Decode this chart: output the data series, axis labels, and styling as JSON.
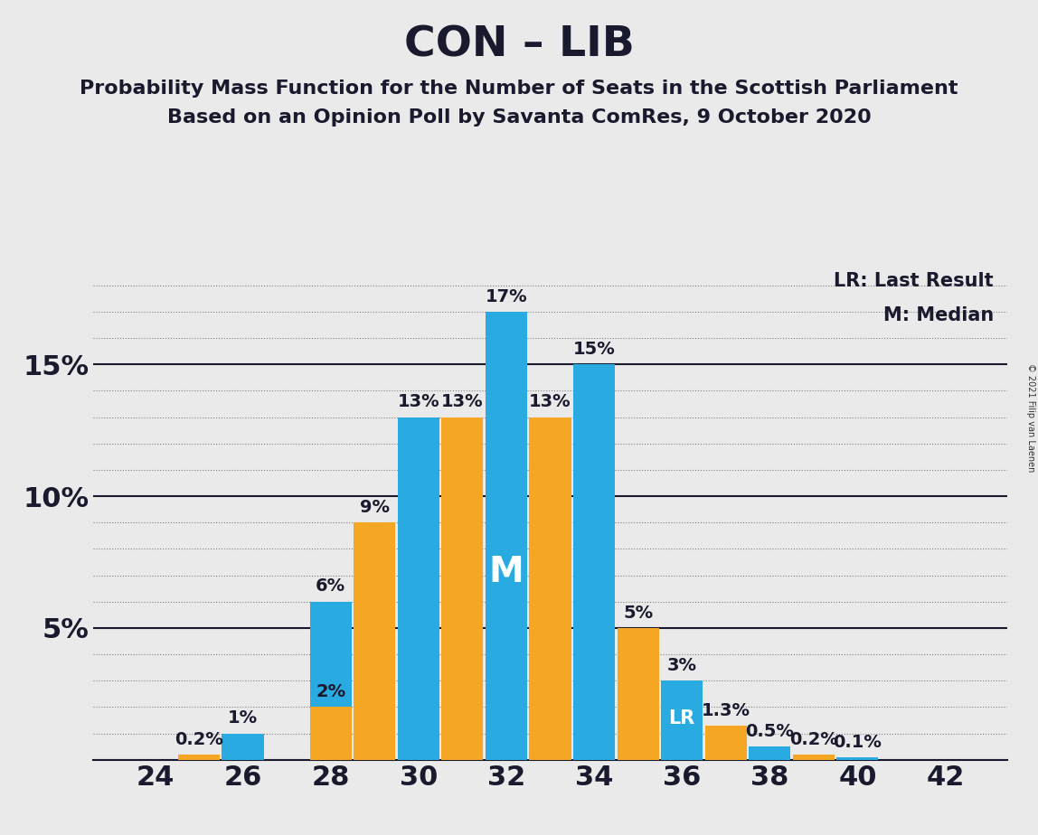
{
  "title": "CON – LIB",
  "subtitle1": "Probability Mass Function for the Number of Seats in the Scottish Parliament",
  "subtitle2": "Based on an Opinion Poll by Savanta ComRes, 9 October 2020",
  "copyright": "© 2021 Filip van Laenen",
  "legend_lr": "LR: Last Result",
  "legend_m": "M: Median",
  "seats": [
    24,
    25,
    26,
    27,
    28,
    29,
    30,
    31,
    32,
    33,
    34,
    35,
    36,
    37,
    38,
    39,
    40,
    41,
    42
  ],
  "blue_values": [
    0.0,
    0.0,
    1.0,
    0.0,
    6.0,
    0.0,
    13.0,
    0.0,
    17.0,
    0.0,
    15.0,
    0.0,
    3.0,
    0.0,
    0.5,
    0.0,
    0.1,
    0.0,
    0.0
  ],
  "orange_values": [
    0.0,
    0.2,
    0.0,
    0.0,
    2.0,
    9.0,
    0.0,
    13.0,
    0.0,
    13.0,
    0.0,
    5.0,
    0.0,
    1.3,
    0.0,
    0.2,
    0.0,
    0.0,
    0.0
  ],
  "xtick_seats": [
    24,
    26,
    28,
    30,
    32,
    34,
    36,
    38,
    40,
    42
  ],
  "blue_color": "#29ABE2",
  "orange_color": "#F5A623",
  "background_color": "#EAEAEA",
  "median_seat": 32,
  "lr_seat": 36,
  "bar_width": 0.95,
  "ylim": [
    0,
    19.0
  ],
  "yticks": [
    0,
    5,
    10,
    15
  ],
  "ytick_labels": [
    "",
    "5%",
    "10%",
    "15%"
  ],
  "title_fontsize": 34,
  "subtitle_fontsize": 16,
  "axis_fontsize": 22,
  "annotation_fontsize": 14,
  "label_lr_fontsize": 15,
  "label_m_fontsize": 15
}
